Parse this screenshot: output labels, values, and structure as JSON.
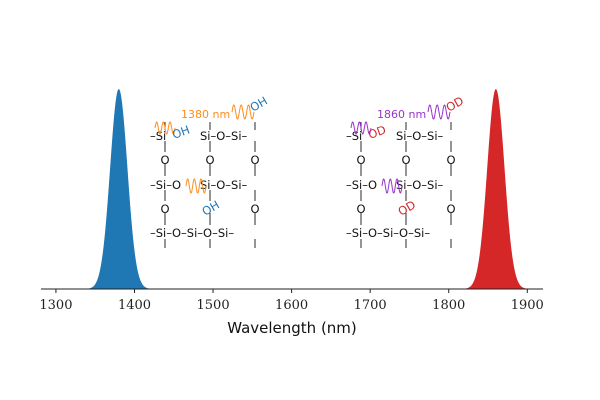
{
  "chart_data": {
    "type": "area",
    "xlabel": "Wavelength (nm)",
    "ylabel": "",
    "xlim": [
      1281,
      1920
    ],
    "xticks": [
      1300,
      1400,
      1500,
      1600,
      1700,
      1800,
      1900
    ],
    "grid": false,
    "series": [
      {
        "center": 1380,
        "sigma": 11,
        "amplitude": 1,
        "color": "#1f77b4"
      },
      {
        "center": 1860,
        "sigma": 11,
        "amplitude": 1,
        "color": "#d62728"
      }
    ],
    "annotations": [
      {
        "label": "1380 nm",
        "group": "OH",
        "color": "#ff8c1a",
        "bond_label": "OH",
        "bond_color": "#1f77b4",
        "center": 1380
      },
      {
        "label": "1860 nm",
        "group": "OD",
        "color": "#9933cc",
        "bond_label": "OD",
        "bond_color": "#d62728",
        "center": 1860
      }
    ],
    "structure": {
      "si": "Si",
      "o": "O",
      "row_left": "–Si–O",
      "row_right": "Si–O–Si–",
      "row_full": "–Si–O–Si–O–Si–",
      "row_start": "–Si"
    }
  }
}
